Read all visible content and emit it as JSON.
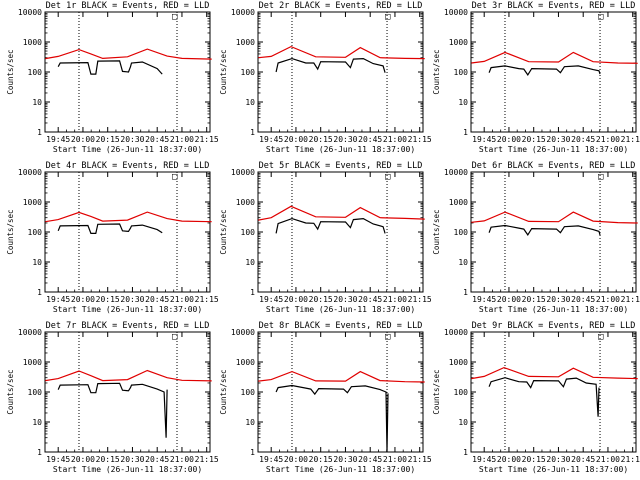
{
  "figure": {
    "xlabel": "Start Time (26-Jun-11 18:37:00)",
    "ylabel": "Counts/sec",
    "x_ticks": [
      "19:45",
      "20:00",
      "20:15",
      "20:30",
      "20:45",
      "21:00",
      "21:15"
    ],
    "y_ticks": [
      "1",
      "10",
      "100",
      "1000",
      "10000"
    ],
    "corner_mark": "□"
  },
  "chart_data": [
    {
      "title": "Det 1r BLACK = Events, RED = LLD",
      "type": "line",
      "xlim": [
        "19:37",
        "21:17"
      ],
      "ylim": [
        1,
        10000
      ],
      "yscale": "log",
      "series": [
        {
          "color": "#000000",
          "points": [
            [
              19.75,
              150
            ],
            [
              19.77,
              200
            ],
            [
              20.05,
              205
            ],
            [
              20.08,
              85
            ],
            [
              20.13,
              85
            ],
            [
              20.15,
              230
            ],
            [
              20.37,
              235
            ],
            [
              20.4,
              105
            ],
            [
              20.46,
              100
            ],
            [
              20.48,
              150
            ],
            [
              20.49,
              200
            ],
            [
              20.6,
              215
            ],
            [
              20.75,
              130
            ],
            [
              20.8,
              85
            ]
          ]
        },
        {
          "color": "#e00000",
          "points": [
            [
              19.62,
              280
            ],
            [
              19.75,
              330
            ],
            [
              19.96,
              560
            ],
            [
              20.08,
              400
            ],
            [
              20.2,
              285
            ],
            [
              20.45,
              320
            ],
            [
              20.65,
              580
            ],
            [
              20.85,
              340
            ],
            [
              21.0,
              285
            ],
            [
              21.3,
              270
            ]
          ]
        }
      ],
      "vlines": [
        19.96,
        20.95
      ]
    },
    {
      "title": "Det 2r BLACK = Events, RED = LLD",
      "type": "line",
      "xlim": [
        "19:37",
        "21:17"
      ],
      "ylim": [
        1,
        10000
      ],
      "yscale": "log",
      "series": [
        {
          "color": "#000000",
          "points": [
            [
              19.8,
              100
            ],
            [
              19.82,
              200
            ],
            [
              19.96,
              280
            ],
            [
              20.1,
              200
            ],
            [
              20.18,
              200
            ],
            [
              20.22,
              125
            ],
            [
              20.25,
              220
            ],
            [
              20.5,
              215
            ],
            [
              20.55,
              140
            ],
            [
              20.58,
              270
            ],
            [
              20.68,
              280
            ],
            [
              20.78,
              190
            ],
            [
              20.88,
              160
            ],
            [
              20.9,
              95
            ]
          ]
        },
        {
          "color": "#e00000",
          "points": [
            [
              19.62,
              300
            ],
            [
              19.75,
              330
            ],
            [
              19.95,
              700
            ],
            [
              20.2,
              320
            ],
            [
              20.5,
              310
            ],
            [
              20.65,
              650
            ],
            [
              20.85,
              300
            ],
            [
              21.1,
              285
            ],
            [
              21.3,
              280
            ]
          ]
        }
      ],
      "vlines": [
        19.96,
        20.92
      ]
    },
    {
      "title": "Det 3r BLACK = Events, RED = LLD",
      "type": "line",
      "xlim": [
        "19:37",
        "21:17"
      ],
      "ylim": [
        1,
        10000
      ],
      "yscale": "log",
      "series": [
        {
          "color": "#000000",
          "points": [
            [
              19.8,
              95
            ],
            [
              19.82,
              140
            ],
            [
              19.96,
              160
            ],
            [
              20.1,
              130
            ],
            [
              20.15,
              125
            ],
            [
              20.19,
              80
            ],
            [
              20.23,
              130
            ],
            [
              20.48,
              125
            ],
            [
              20.52,
              95
            ],
            [
              20.56,
              150
            ],
            [
              20.7,
              160
            ],
            [
              20.85,
              120
            ],
            [
              20.91,
              110
            ],
            [
              20.92,
              85
            ]
          ]
        },
        {
          "color": "#e00000",
          "points": [
            [
              19.62,
              200
            ],
            [
              19.75,
              225
            ],
            [
              19.96,
              450
            ],
            [
              20.2,
              220
            ],
            [
              20.5,
              215
            ],
            [
              20.65,
              450
            ],
            [
              20.85,
              220
            ],
            [
              21.1,
              200
            ],
            [
              21.3,
              195
            ]
          ]
        }
      ],
      "vlines": [
        19.96,
        20.92
      ]
    },
    {
      "title": "Det 4r BLACK = Events, RED = LLD",
      "type": "line",
      "xlim": [
        "19:37",
        "21:17"
      ],
      "ylim": [
        1,
        10000
      ],
      "yscale": "log",
      "series": [
        {
          "color": "#000000",
          "points": [
            [
              19.75,
              110
            ],
            [
              19.77,
              160
            ],
            [
              20.05,
              165
            ],
            [
              20.08,
              90
            ],
            [
              20.13,
              90
            ],
            [
              20.15,
              180
            ],
            [
              20.37,
              185
            ],
            [
              20.4,
              110
            ],
            [
              20.46,
              105
            ],
            [
              20.48,
              135
            ],
            [
              20.49,
              160
            ],
            [
              20.6,
              170
            ],
            [
              20.75,
              120
            ],
            [
              20.8,
              95
            ]
          ]
        },
        {
          "color": "#e00000",
          "points": [
            [
              19.62,
              220
            ],
            [
              19.75,
              260
            ],
            [
              19.96,
              450
            ],
            [
              20.08,
              330
            ],
            [
              20.2,
              230
            ],
            [
              20.45,
              250
            ],
            [
              20.65,
              460
            ],
            [
              20.85,
              280
            ],
            [
              21.0,
              230
            ],
            [
              21.3,
              220
            ]
          ]
        }
      ],
      "vlines": [
        19.96,
        20.95
      ]
    },
    {
      "title": "Det 5r BLACK = Events, RED = LLD",
      "type": "line",
      "xlim": [
        "19:37",
        "21:17"
      ],
      "ylim": [
        1,
        10000
      ],
      "yscale": "log",
      "series": [
        {
          "color": "#000000",
          "points": [
            [
              19.8,
              90
            ],
            [
              19.82,
              190
            ],
            [
              19.96,
              280
            ],
            [
              20.1,
              200
            ],
            [
              20.18,
              195
            ],
            [
              20.22,
              125
            ],
            [
              20.25,
              220
            ],
            [
              20.5,
              215
            ],
            [
              20.55,
              140
            ],
            [
              20.58,
              260
            ],
            [
              20.68,
              280
            ],
            [
              20.78,
              185
            ],
            [
              20.88,
              150
            ],
            [
              20.9,
              90
            ]
          ]
        },
        {
          "color": "#e00000",
          "points": [
            [
              19.62,
              250
            ],
            [
              19.75,
              300
            ],
            [
              19.95,
              720
            ],
            [
              20.2,
              320
            ],
            [
              20.5,
              310
            ],
            [
              20.65,
              650
            ],
            [
              20.85,
              300
            ],
            [
              21.1,
              285
            ],
            [
              21.3,
              270
            ]
          ]
        }
      ],
      "vlines": [
        19.96,
        20.92
      ]
    },
    {
      "title": "Det 6r BLACK = Events, RED = LLD",
      "type": "line",
      "xlim": [
        "19:37",
        "21:17"
      ],
      "ylim": [
        1,
        10000
      ],
      "yscale": "log",
      "series": [
        {
          "color": "#000000",
          "points": [
            [
              19.8,
              95
            ],
            [
              19.82,
              145
            ],
            [
              19.96,
              165
            ],
            [
              20.1,
              135
            ],
            [
              20.15,
              125
            ],
            [
              20.19,
              80
            ],
            [
              20.23,
              130
            ],
            [
              20.48,
              125
            ],
            [
              20.52,
              95
            ],
            [
              20.56,
              150
            ],
            [
              20.7,
              160
            ],
            [
              20.85,
              120
            ],
            [
              20.91,
              105
            ],
            [
              20.92,
              80
            ]
          ]
        },
        {
          "color": "#e00000",
          "points": [
            [
              19.62,
              210
            ],
            [
              19.75,
              235
            ],
            [
              19.96,
              460
            ],
            [
              20.2,
              225
            ],
            [
              20.5,
              220
            ],
            [
              20.65,
              460
            ],
            [
              20.85,
              230
            ],
            [
              21.1,
              205
            ],
            [
              21.3,
              200
            ]
          ]
        }
      ],
      "vlines": [
        19.96,
        20.92
      ]
    },
    {
      "title": "Det 7r BLACK = Events, RED = LLD",
      "type": "line",
      "xlim": [
        "19:37",
        "21:17"
      ],
      "ylim": [
        1,
        10000
      ],
      "yscale": "log",
      "series": [
        {
          "color": "#000000",
          "points": [
            [
              19.75,
              120
            ],
            [
              19.77,
              170
            ],
            [
              20.05,
              175
            ],
            [
              20.08,
              95
            ],
            [
              20.13,
              95
            ],
            [
              20.15,
              190
            ],
            [
              20.37,
              195
            ],
            [
              20.4,
              115
            ],
            [
              20.46,
              110
            ],
            [
              20.48,
              140
            ],
            [
              20.49,
              170
            ],
            [
              20.6,
              180
            ],
            [
              20.75,
              125
            ],
            [
              20.82,
              100
            ],
            [
              20.84,
              3
            ],
            [
              20.85,
              120
            ]
          ]
        },
        {
          "color": "#e00000",
          "points": [
            [
              19.62,
              240
            ],
            [
              19.75,
              280
            ],
            [
              19.96,
              500
            ],
            [
              20.08,
              350
            ],
            [
              20.2,
              240
            ],
            [
              20.45,
              260
            ],
            [
              20.65,
              520
            ],
            [
              20.85,
              300
            ],
            [
              21.0,
              245
            ],
            [
              21.3,
              235
            ]
          ]
        }
      ],
      "vlines": [
        19.96,
        20.95
      ]
    },
    {
      "title": "Det 8r BLACK = Events, RED = LLD",
      "type": "line",
      "xlim": [
        "19:37",
        "21:17"
      ],
      "ylim": [
        1,
        10000
      ],
      "yscale": "log",
      "series": [
        {
          "color": "#000000",
          "points": [
            [
              19.8,
              100
            ],
            [
              19.82,
              140
            ],
            [
              19.96,
              165
            ],
            [
              20.1,
              135
            ],
            [
              20.15,
              125
            ],
            [
              20.19,
              85
            ],
            [
              20.23,
              130
            ],
            [
              20.48,
              125
            ],
            [
              20.52,
              95
            ],
            [
              20.56,
              150
            ],
            [
              20.7,
              160
            ],
            [
              20.85,
              120
            ],
            [
              20.91,
              100
            ],
            [
              20.92,
              1
            ],
            [
              20.93,
              90
            ]
          ]
        },
        {
          "color": "#e00000",
          "points": [
            [
              19.62,
              230
            ],
            [
              19.75,
              260
            ],
            [
              19.96,
              480
            ],
            [
              20.2,
              235
            ],
            [
              20.5,
              230
            ],
            [
              20.65,
              480
            ],
            [
              20.85,
              240
            ],
            [
              21.1,
              220
            ],
            [
              21.3,
              215
            ]
          ]
        }
      ],
      "vlines": [
        19.96,
        20.92
      ]
    },
    {
      "title": "Det 9r BLACK = Events, RED = LLD",
      "type": "line",
      "xlim": [
        "19:37",
        "21:17"
      ],
      "ylim": [
        1,
        10000
      ],
      "yscale": "log",
      "series": [
        {
          "color": "#000000",
          "points": [
            [
              19.8,
              150
            ],
            [
              19.82,
              220
            ],
            [
              19.96,
              300
            ],
            [
              20.1,
              220
            ],
            [
              20.18,
              215
            ],
            [
              20.22,
              140
            ],
            [
              20.25,
              240
            ],
            [
              20.5,
              235
            ],
            [
              20.55,
              150
            ],
            [
              20.58,
              270
            ],
            [
              20.68,
              290
            ],
            [
              20.78,
              200
            ],
            [
              20.88,
              180
            ],
            [
              20.9,
              15
            ],
            [
              20.91,
              140
            ]
          ]
        },
        {
          "color": "#e00000",
          "points": [
            [
              19.62,
              280
            ],
            [
              19.75,
              330
            ],
            [
              19.95,
              650
            ],
            [
              20.2,
              330
            ],
            [
              20.5,
              320
            ],
            [
              20.65,
              620
            ],
            [
              20.85,
              310
            ],
            [
              21.1,
              290
            ],
            [
              21.3,
              280
            ]
          ]
        }
      ],
      "vlines": [
        19.96,
        20.92
      ]
    }
  ]
}
